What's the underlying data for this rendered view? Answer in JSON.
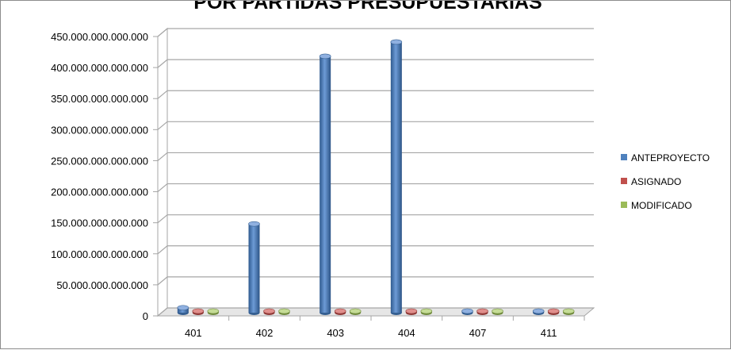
{
  "chart_data": {
    "type": "bar",
    "title": "POR PARTIDAS PRESUPUESTARIAS",
    "categories": [
      "401",
      "402",
      "403",
      "404",
      "407",
      "411"
    ],
    "series": [
      {
        "name": "ANTEPROYECTO",
        "color": "#4f81bd",
        "values": [
          8000000000000,
          143000000000000,
          413000000000000,
          436000000000000,
          1500000000000,
          500000000000
        ]
      },
      {
        "name": "ASIGNADO",
        "color": "#c0504d",
        "values": [
          700000000000,
          700000000000,
          1500000000000,
          700000000000,
          500000000000,
          500000000000
        ]
      },
      {
        "name": "MODIFICADO",
        "color": "#9bbb59",
        "values": [
          500000000000,
          500000000000,
          1200000000000,
          500000000000,
          400000000000,
          400000000000
        ]
      }
    ],
    "y_ticks": [
      "0",
      "50.000.000.000.000",
      "100.000.000.000.000",
      "150.000.000.000.000",
      "200.000.000.000.000",
      "250.000.000.000.000",
      "300.000.000.000.000",
      "350.000.000.000.000",
      "400.000.000.000.000",
      "450.000.000.000.000"
    ],
    "ylim": [
      0,
      450000000000000
    ],
    "grid": true,
    "legend_position": "right"
  }
}
